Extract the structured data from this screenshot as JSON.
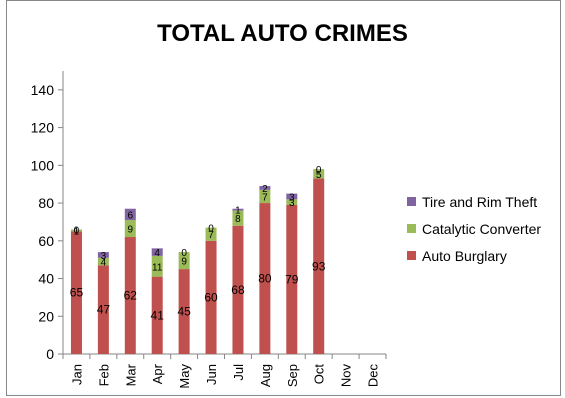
{
  "chart_data": {
    "type": "bar",
    "stacked": true,
    "title": "TOTAL AUTO CRIMES",
    "xlabel": "",
    "ylabel": "",
    "ylim": [
      0,
      150
    ],
    "yticks": [
      0,
      20,
      40,
      60,
      80,
      100,
      120,
      140
    ],
    "categories": [
      "Jan",
      "Feb",
      "Mar",
      "Apr",
      "May",
      "Jun",
      "Jul",
      "Aug",
      "Sep",
      "Oct",
      "Nov",
      "Dec"
    ],
    "series": [
      {
        "name": "Auto Burglary",
        "color": "#c0504d",
        "values": [
          65,
          47,
          62,
          41,
          45,
          60,
          68,
          80,
          79,
          93,
          null,
          null
        ],
        "labels": [
          "65",
          "47",
          "62",
          "41",
          "45",
          "60",
          "68",
          "80",
          "79",
          "93",
          "",
          ""
        ]
      },
      {
        "name": "Catalytic Converter",
        "color": "#9bbb59",
        "values": [
          1,
          4,
          9,
          11,
          9,
          7,
          8,
          7,
          3,
          5,
          null,
          null
        ],
        "labels": [
          "1",
          "4",
          "9",
          "11",
          "9",
          "7",
          "8",
          "7",
          "3",
          "5",
          "",
          ""
        ]
      },
      {
        "name": "Tire and Rim Theft",
        "color": "#8064a2",
        "values": [
          0,
          3,
          6,
          4,
          0,
          0,
          1,
          2,
          3,
          0,
          null,
          null
        ],
        "labels": [
          "0",
          "3",
          "6",
          "4",
          "0",
          "0",
          "1",
          "2",
          "3",
          "0",
          "",
          ""
        ]
      }
    ],
    "legend": {
      "position": "right",
      "order": [
        "Tire and Rim Theft",
        "Catalytic Converter",
        "Auto Burglary"
      ]
    },
    "grid": false
  }
}
